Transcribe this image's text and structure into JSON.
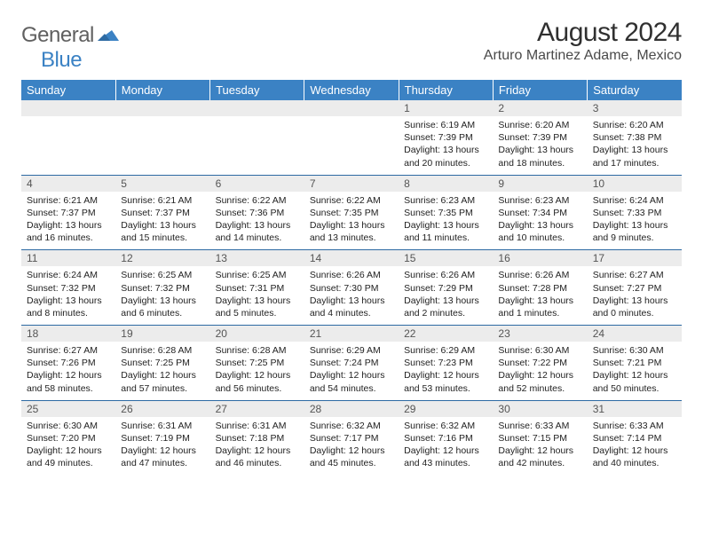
{
  "logo": {
    "part1": "General",
    "part2": "Blue"
  },
  "title": "August 2024",
  "location": "Arturo Martinez Adame, Mexico",
  "colors": {
    "header_bg": "#3b82c4",
    "header_text": "#ffffff",
    "daynum_bg": "#ececec",
    "row_border": "#2d6aa3",
    "logo_gray": "#606060",
    "logo_blue": "#3b82c4",
    "page_bg": "#ffffff"
  },
  "fonts": {
    "title_size_pt": 22,
    "location_size_pt": 12,
    "header_size_pt": 10,
    "daynum_size_pt": 9,
    "body_size_pt": 8
  },
  "daynames": [
    "Sunday",
    "Monday",
    "Tuesday",
    "Wednesday",
    "Thursday",
    "Friday",
    "Saturday"
  ],
  "weeks": [
    [
      null,
      null,
      null,
      null,
      {
        "n": "1",
        "sunrise": "6:19 AM",
        "sunset": "7:39 PM",
        "dlh": "13",
        "dlm": "20"
      },
      {
        "n": "2",
        "sunrise": "6:20 AM",
        "sunset": "7:39 PM",
        "dlh": "13",
        "dlm": "18"
      },
      {
        "n": "3",
        "sunrise": "6:20 AM",
        "sunset": "7:38 PM",
        "dlh": "13",
        "dlm": "17"
      }
    ],
    [
      {
        "n": "4",
        "sunrise": "6:21 AM",
        "sunset": "7:37 PM",
        "dlh": "13",
        "dlm": "16"
      },
      {
        "n": "5",
        "sunrise": "6:21 AM",
        "sunset": "7:37 PM",
        "dlh": "13",
        "dlm": "15"
      },
      {
        "n": "6",
        "sunrise": "6:22 AM",
        "sunset": "7:36 PM",
        "dlh": "13",
        "dlm": "14"
      },
      {
        "n": "7",
        "sunrise": "6:22 AM",
        "sunset": "7:35 PM",
        "dlh": "13",
        "dlm": "13"
      },
      {
        "n": "8",
        "sunrise": "6:23 AM",
        "sunset": "7:35 PM",
        "dlh": "13",
        "dlm": "11"
      },
      {
        "n": "9",
        "sunrise": "6:23 AM",
        "sunset": "7:34 PM",
        "dlh": "13",
        "dlm": "10"
      },
      {
        "n": "10",
        "sunrise": "6:24 AM",
        "sunset": "7:33 PM",
        "dlh": "13",
        "dlm": "9"
      }
    ],
    [
      {
        "n": "11",
        "sunrise": "6:24 AM",
        "sunset": "7:32 PM",
        "dlh": "13",
        "dlm": "8"
      },
      {
        "n": "12",
        "sunrise": "6:25 AM",
        "sunset": "7:32 PM",
        "dlh": "13",
        "dlm": "6"
      },
      {
        "n": "13",
        "sunrise": "6:25 AM",
        "sunset": "7:31 PM",
        "dlh": "13",
        "dlm": "5"
      },
      {
        "n": "14",
        "sunrise": "6:26 AM",
        "sunset": "7:30 PM",
        "dlh": "13",
        "dlm": "4"
      },
      {
        "n": "15",
        "sunrise": "6:26 AM",
        "sunset": "7:29 PM",
        "dlh": "13",
        "dlm": "2"
      },
      {
        "n": "16",
        "sunrise": "6:26 AM",
        "sunset": "7:28 PM",
        "dlh": "13",
        "dlm": "1"
      },
      {
        "n": "17",
        "sunrise": "6:27 AM",
        "sunset": "7:27 PM",
        "dlh": "13",
        "dlm": "0"
      }
    ],
    [
      {
        "n": "18",
        "sunrise": "6:27 AM",
        "sunset": "7:26 PM",
        "dlh": "12",
        "dlm": "58"
      },
      {
        "n": "19",
        "sunrise": "6:28 AM",
        "sunset": "7:25 PM",
        "dlh": "12",
        "dlm": "57"
      },
      {
        "n": "20",
        "sunrise": "6:28 AM",
        "sunset": "7:25 PM",
        "dlh": "12",
        "dlm": "56"
      },
      {
        "n": "21",
        "sunrise": "6:29 AM",
        "sunset": "7:24 PM",
        "dlh": "12",
        "dlm": "54"
      },
      {
        "n": "22",
        "sunrise": "6:29 AM",
        "sunset": "7:23 PM",
        "dlh": "12",
        "dlm": "53"
      },
      {
        "n": "23",
        "sunrise": "6:30 AM",
        "sunset": "7:22 PM",
        "dlh": "12",
        "dlm": "52"
      },
      {
        "n": "24",
        "sunrise": "6:30 AM",
        "sunset": "7:21 PM",
        "dlh": "12",
        "dlm": "50"
      }
    ],
    [
      {
        "n": "25",
        "sunrise": "6:30 AM",
        "sunset": "7:20 PM",
        "dlh": "12",
        "dlm": "49"
      },
      {
        "n": "26",
        "sunrise": "6:31 AM",
        "sunset": "7:19 PM",
        "dlh": "12",
        "dlm": "47"
      },
      {
        "n": "27",
        "sunrise": "6:31 AM",
        "sunset": "7:18 PM",
        "dlh": "12",
        "dlm": "46"
      },
      {
        "n": "28",
        "sunrise": "6:32 AM",
        "sunset": "7:17 PM",
        "dlh": "12",
        "dlm": "45"
      },
      {
        "n": "29",
        "sunrise": "6:32 AM",
        "sunset": "7:16 PM",
        "dlh": "12",
        "dlm": "43"
      },
      {
        "n": "30",
        "sunrise": "6:33 AM",
        "sunset": "7:15 PM",
        "dlh": "12",
        "dlm": "42"
      },
      {
        "n": "31",
        "sunrise": "6:33 AM",
        "sunset": "7:14 PM",
        "dlh": "12",
        "dlm": "40"
      }
    ]
  ],
  "labels": {
    "sunrise": "Sunrise:",
    "sunset": "Sunset:",
    "daylight": "Daylight:",
    "hours": "hours",
    "and": "and",
    "minutes": "minutes."
  }
}
